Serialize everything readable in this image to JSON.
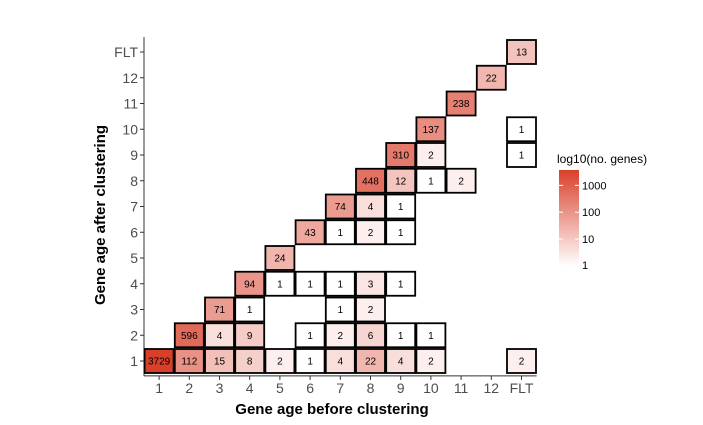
{
  "chart_data": {
    "type": "heatmap",
    "xlabel": "Gene age before clustering",
    "ylabel": "Gene age after clustering",
    "x_categories": [
      "1",
      "2",
      "3",
      "4",
      "5",
      "6",
      "7",
      "8",
      "9",
      "10",
      "11",
      "12",
      "FLT"
    ],
    "y_categories": [
      "1",
      "2",
      "3",
      "4",
      "5",
      "6",
      "7",
      "8",
      "9",
      "10",
      "11",
      "12",
      "FLT"
    ],
    "color_scale": {
      "title": "log10(no. genes)",
      "low": "#ffffff",
      "high": "#d9402b",
      "breaks": [
        "1",
        "10",
        "100",
        "1000"
      ],
      "max_value": 3729
    },
    "cells": [
      {
        "x": "1",
        "y": "1",
        "value": 3729
      },
      {
        "x": "2",
        "y": "1",
        "value": 112
      },
      {
        "x": "3",
        "y": "1",
        "value": 15
      },
      {
        "x": "4",
        "y": "1",
        "value": 8
      },
      {
        "x": "5",
        "y": "1",
        "value": 2
      },
      {
        "x": "6",
        "y": "1",
        "value": 1
      },
      {
        "x": "7",
        "y": "1",
        "value": 4
      },
      {
        "x": "8",
        "y": "1",
        "value": 22
      },
      {
        "x": "9",
        "y": "1",
        "value": 4
      },
      {
        "x": "10",
        "y": "1",
        "value": 2
      },
      {
        "x": "FLT",
        "y": "1",
        "value": 2
      },
      {
        "x": "2",
        "y": "2",
        "value": 596
      },
      {
        "x": "3",
        "y": "2",
        "value": 4
      },
      {
        "x": "4",
        "y": "2",
        "value": 9
      },
      {
        "x": "6",
        "y": "2",
        "value": 1
      },
      {
        "x": "7",
        "y": "2",
        "value": 2
      },
      {
        "x": "8",
        "y": "2",
        "value": 6
      },
      {
        "x": "9",
        "y": "2",
        "value": 1
      },
      {
        "x": "10",
        "y": "2",
        "value": 1
      },
      {
        "x": "3",
        "y": "3",
        "value": 71
      },
      {
        "x": "4",
        "y": "3",
        "value": 1
      },
      {
        "x": "7",
        "y": "3",
        "value": 1
      },
      {
        "x": "8",
        "y": "3",
        "value": 2
      },
      {
        "x": "4",
        "y": "4",
        "value": 94
      },
      {
        "x": "5",
        "y": "4",
        "value": 1
      },
      {
        "x": "6",
        "y": "4",
        "value": 1
      },
      {
        "x": "7",
        "y": "4",
        "value": 1
      },
      {
        "x": "8",
        "y": "4",
        "value": 3
      },
      {
        "x": "9",
        "y": "4",
        "value": 1
      },
      {
        "x": "5",
        "y": "5",
        "value": 24
      },
      {
        "x": "6",
        "y": "6",
        "value": 43
      },
      {
        "x": "7",
        "y": "6",
        "value": 1
      },
      {
        "x": "8",
        "y": "6",
        "value": 2
      },
      {
        "x": "9",
        "y": "6",
        "value": 1
      },
      {
        "x": "7",
        "y": "7",
        "value": 74
      },
      {
        "x": "8",
        "y": "7",
        "value": 4
      },
      {
        "x": "9",
        "y": "7",
        "value": 1
      },
      {
        "x": "8",
        "y": "8",
        "value": 448
      },
      {
        "x": "9",
        "y": "8",
        "value": 12
      },
      {
        "x": "10",
        "y": "8",
        "value": 1
      },
      {
        "x": "11",
        "y": "8",
        "value": 2
      },
      {
        "x": "9",
        "y": "9",
        "value": 310
      },
      {
        "x": "10",
        "y": "9",
        "value": 2
      },
      {
        "x": "FLT",
        "y": "9",
        "value": 1
      },
      {
        "x": "10",
        "y": "10",
        "value": 137
      },
      {
        "x": "FLT",
        "y": "10",
        "value": 1
      },
      {
        "x": "11",
        "y": "11",
        "value": 238
      },
      {
        "x": "12",
        "y": "12",
        "value": 22
      },
      {
        "x": "FLT",
        "y": "FLT",
        "value": 13
      }
    ],
    "grid": false,
    "legend_position": "right"
  }
}
